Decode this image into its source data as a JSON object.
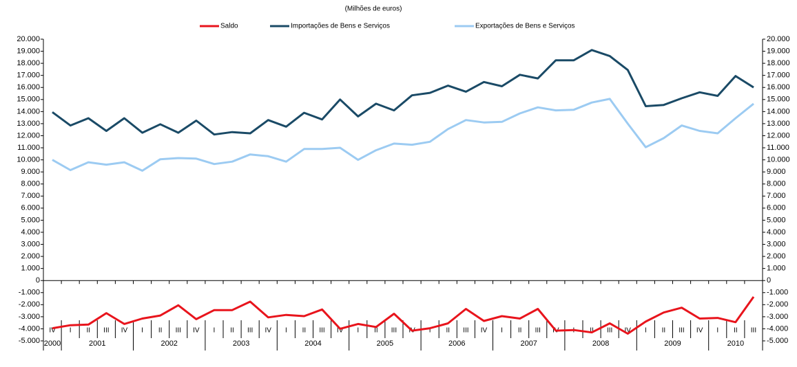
{
  "chart_data": {
    "type": "line",
    "subtitle": "(Milhões de euros)",
    "categories": [
      "IV",
      "I",
      "II",
      "III",
      "IV",
      "I",
      "II",
      "III",
      "IV",
      "I",
      "II",
      "III",
      "IV",
      "I",
      "II",
      "III",
      "IV",
      "I",
      "II",
      "III",
      "IV",
      "I",
      "II",
      "III",
      "IV",
      "I",
      "II",
      "III",
      "IV",
      "I",
      "II",
      "III",
      "IV",
      "I",
      "II",
      "III",
      "IV",
      "I",
      "II",
      "III"
    ],
    "years": [
      "2000",
      "2001",
      "2002",
      "2003",
      "2004",
      "2005",
      "2006",
      "2007",
      "2008",
      "2009",
      "2010"
    ],
    "series": [
      {
        "name": "Saldo",
        "color": "#e8141c",
        "values": [
          -3950,
          -3700,
          -3650,
          -2700,
          -3600,
          -3150,
          -2900,
          -2050,
          -3200,
          -2450,
          -2450,
          -1750,
          -3050,
          -2850,
          -2950,
          -2400,
          -4000,
          -3600,
          -3850,
          -2750,
          -4150,
          -3950,
          -3550,
          -2350,
          -3350,
          -2950,
          -3150,
          -2350,
          -4150,
          -4100,
          -4300,
          -3550,
          -4400,
          -3400,
          -2650,
          -2250,
          -3150,
          -3100,
          -3450,
          -1350
        ]
      },
      {
        "name": "Importações de Bens e Serviços",
        "color": "#1a4a66",
        "values": [
          13950,
          12850,
          13450,
          12400,
          13450,
          12250,
          12950,
          12250,
          13250,
          12100,
          12300,
          12200,
          13300,
          12750,
          13900,
          13350,
          15000,
          13600,
          14650,
          14100,
          15350,
          15550,
          16150,
          15650,
          16450,
          16100,
          17050,
          16750,
          18250,
          18250,
          19100,
          18600,
          17450,
          14450,
          14550,
          15100,
          15600,
          15300,
          16950,
          16000
        ]
      },
      {
        "name": "Exportações de Bens e Serviços",
        "color": "#9ccbf2",
        "values": [
          10000,
          9150,
          9800,
          9600,
          9800,
          9100,
          10050,
          10150,
          10100,
          9650,
          9850,
          10450,
          10300,
          9850,
          10900,
          10900,
          11000,
          10000,
          10800,
          11350,
          11250,
          11500,
          12550,
          13300,
          13100,
          13150,
          13850,
          14350,
          14100,
          14150,
          14750,
          15050,
          13000,
          11050,
          11800,
          12850,
          12400,
          12200,
          13450,
          14650
        ]
      }
    ],
    "ylim": [
      -5000,
      20000
    ],
    "yticks": [
      {
        "value": 20000,
        "label": "20.000"
      },
      {
        "value": 19000,
        "label": "19.000"
      },
      {
        "value": 18000,
        "label": "18.000"
      },
      {
        "value": 17000,
        "label": "17.000"
      },
      {
        "value": 16000,
        "label": "16.000"
      },
      {
        "value": 15000,
        "label": "15.000"
      },
      {
        "value": 14000,
        "label": "14.000"
      },
      {
        "value": 13000,
        "label": "13.000"
      },
      {
        "value": 12000,
        "label": "12.000"
      },
      {
        "value": 11000,
        "label": "11.000"
      },
      {
        "value": 10000,
        "label": "10.000"
      },
      {
        "value": 9000,
        "label": "9.000"
      },
      {
        "value": 8000,
        "label": "8.000"
      },
      {
        "value": 7000,
        "label": "7.000"
      },
      {
        "value": 6000,
        "label": "6.000"
      },
      {
        "value": 5000,
        "label": "5.000"
      },
      {
        "value": 4000,
        "label": "4.000"
      },
      {
        "value": 3000,
        "label": "3.000"
      },
      {
        "value": 2000,
        "label": "2.000"
      },
      {
        "value": 1000,
        "label": "1.000"
      },
      0,
      {
        "value": -1000,
        "label": "-1.000"
      },
      {
        "value": -2000,
        "label": "-2.000"
      },
      {
        "value": -3000,
        "label": "-3.000"
      },
      {
        "value": -4000,
        "label": "-4.000"
      },
      {
        "value": -5000,
        "label": "-5.000"
      }
    ],
    "legend": "top"
  }
}
